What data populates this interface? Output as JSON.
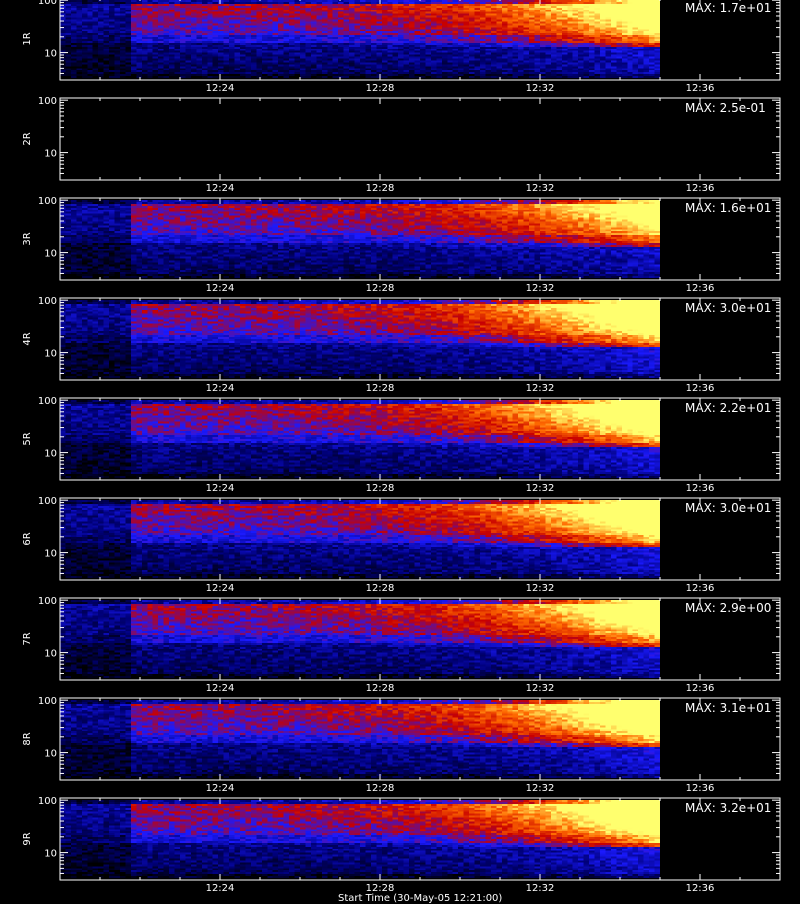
{
  "chart_data": {
    "type": "heatmap",
    "x_axis": {
      "ticks": [
        "12:24",
        "12:28",
        "12:32",
        "12:36"
      ],
      "range": [
        "12:20",
        "12:38"
      ]
    },
    "y_axis": {
      "scale": "log",
      "ticks": [
        "10",
        "100"
      ],
      "range": [
        3,
        110
      ]
    },
    "data_extent": {
      "time_start": "12:20",
      "time_end": "12:35",
      "bright_segment_start": "12:21:45"
    },
    "colormap": [
      "#000000",
      "#00007a",
      "#1a1aff",
      "#c80000",
      "#ff6a00",
      "#ffff6e"
    ],
    "panels": [
      {
        "ylabel": "1R",
        "max_label": "MAX: 1.7e+01",
        "intensity": 0.78,
        "has_data": true
      },
      {
        "ylabel": "2R",
        "max_label": "MAX: 2.5e-01",
        "intensity": 0.0,
        "has_data": false
      },
      {
        "ylabel": "3R",
        "max_label": "MAX: 1.6e+01",
        "intensity": 0.7,
        "has_data": true
      },
      {
        "ylabel": "4R",
        "max_label": "MAX: 3.0e+01",
        "intensity": 0.92,
        "has_data": true
      },
      {
        "ylabel": "5R",
        "max_label": "MAX: 2.2e+01",
        "intensity": 0.9,
        "has_data": true
      },
      {
        "ylabel": "6R",
        "max_label": "MAX: 3.0e+01",
        "intensity": 0.92,
        "has_data": true
      },
      {
        "ylabel": "7R",
        "max_label": "MAX: 2.9e+00",
        "intensity": 0.82,
        "has_data": true
      },
      {
        "ylabel": "8R",
        "max_label": "MAX: 3.1e+01",
        "intensity": 0.92,
        "has_data": true
      },
      {
        "ylabel": "9R",
        "max_label": "MAX: 3.2e+01",
        "intensity": 0.92,
        "has_data": true
      }
    ],
    "footer": "Start Time (30-May-05 12:21:00)"
  }
}
